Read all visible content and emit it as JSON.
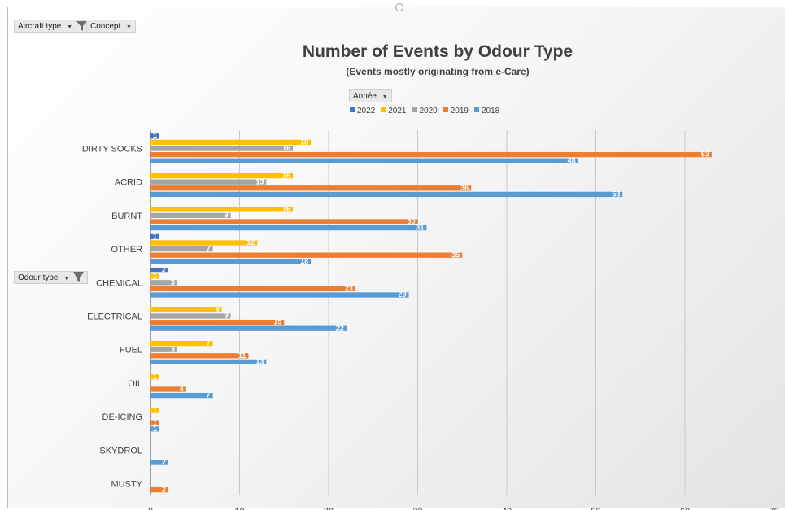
{
  "filters": {
    "aircraft_type": "Aircraft type",
    "concept": "Concept",
    "annee": "Année",
    "odour_type": "Odour type"
  },
  "colors": {
    "2022": "#4472C4",
    "2021": "#FFC000",
    "2020": "#A5A5A5",
    "2019": "#ED7D31",
    "2018": "#5B9BD5",
    "gridline": "#c8c8c8",
    "axis": "#7f7f7f",
    "text": "#404040"
  },
  "chart_data": {
    "type": "bar",
    "orientation": "horizontal",
    "title": "Number of Events by Odour Type",
    "subtitle": "(Events mostly originating from e-Care)",
    "categories": [
      "DIRTY SOCKS",
      "ACRID",
      "BURNT",
      "OTHER",
      "CHEMICAL",
      "ELECTRICAL",
      "FUEL",
      "OIL",
      "DE-ICING",
      "SKYDROL",
      "MUSTY"
    ],
    "series": [
      {
        "name": "2022",
        "values": [
          1,
          null,
          null,
          1,
          2,
          null,
          null,
          null,
          null,
          null,
          null
        ]
      },
      {
        "name": "2021",
        "values": [
          18,
          16,
          16,
          12,
          1,
          8,
          7,
          1,
          1,
          null,
          null
        ]
      },
      {
        "name": "2020",
        "values": [
          16,
          13,
          9,
          7,
          3,
          9,
          3,
          null,
          null,
          null,
          null
        ]
      },
      {
        "name": "2019",
        "values": [
          63,
          36,
          30,
          35,
          23,
          15,
          11,
          4,
          1,
          null,
          2
        ]
      },
      {
        "name": "2018",
        "values": [
          48,
          53,
          31,
          18,
          29,
          22,
          13,
          7,
          1,
          2,
          null
        ]
      }
    ],
    "xlim": [
      0,
      70
    ],
    "xticks": [
      0,
      10,
      20,
      30,
      40,
      50,
      60,
      70
    ],
    "grid": true,
    "legend_position": "top",
    "data_labels": true
  }
}
